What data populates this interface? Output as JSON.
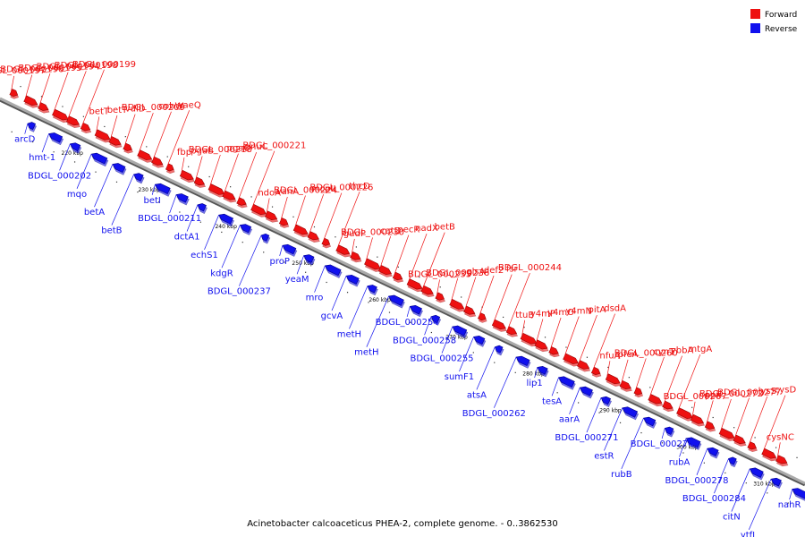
{
  "caption": "Acinetobacter calcoaceticus PHEA-2, complete genome. - 0..3862530",
  "colors": {
    "forward": "#ee1111",
    "reverse": "#1111ee",
    "forward_dark": "#990000",
    "reverse_dark": "#000088",
    "backbone": "#888888"
  },
  "legend": [
    {
      "label": "Forward",
      "strand": "forward"
    },
    {
      "label": "Reverse",
      "strand": "reverse"
    }
  ],
  "ticks": [
    "220 kbp",
    "230 kbp",
    "240 kbp",
    "250 kbp",
    "260 kbp",
    "270 kbp",
    "280 kbp",
    "290 kbp",
    "300 kbp",
    "310 kbp"
  ],
  "forward_genes": [
    "BDGL_000197",
    "BDGL_000196",
    "BDGL_000195",
    "BDGL_000194",
    "BDGL_000198",
    "BDGL_000199",
    "betT",
    "betT",
    "vdlD",
    "BDGL_000209",
    "cobW",
    "yaeQ",
    "fbp",
    "pgaB",
    "BDGL_000218",
    "pgaC",
    "pnuC",
    "BDGL_000221",
    "ndoA",
    "vanA",
    "BDGL_000224",
    "mcpII",
    "BDGL_000226",
    "thcD",
    "gudP",
    "BDGL_000230",
    "catD",
    "pecR",
    "nadX",
    "betB",
    "BDGL_000235",
    "BDGL_000236",
    "glsA",
    "def2",
    "fsr",
    "BDGL_000244",
    "ttuB",
    "y4mP",
    "y4mO",
    "y4mN",
    "pitA",
    "dsdA",
    "nfuA",
    "pfeA",
    "BDGL_000260",
    "cynT",
    "ybbA",
    "mtgA",
    "BDGL_000267",
    "ppk",
    "BDGL_000272",
    "BDGL_000277",
    "lysS",
    "cysD",
    "cysNC"
  ],
  "reverse_genes": [
    "arcD",
    "hmt-1",
    "BDGL_000202",
    "mqo",
    "betA",
    "betB",
    "betI",
    "BDGL_000211",
    "dctA1",
    "echS1",
    "kdgR",
    "BDGL_000237",
    "proP",
    "yeaM",
    "mro",
    "gcvA",
    "metH",
    "metH",
    "BDGL_000254",
    "BDGL_000258",
    "BDGL_000255",
    "sumF1",
    "atsA",
    "BDGL_000262",
    "lip1",
    "tesA",
    "aarA",
    "BDGL_000271",
    "estR",
    "rubB",
    "BDGL_000274",
    "rubA",
    "BDGL_000278",
    "BDGL_000284",
    "citN",
    "ytfL",
    "nahR"
  ]
}
